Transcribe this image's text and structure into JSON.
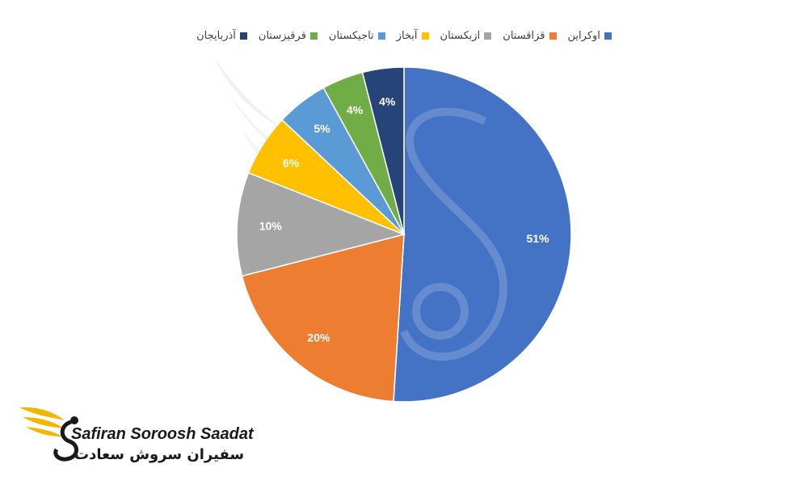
{
  "chart_data": {
    "type": "pie",
    "categories": [
      "اوکراین",
      "قزاقستان",
      "ازبکستان",
      "آبخاز",
      "تاجیکستان",
      "قرقیزستان",
      "آذربایجان"
    ],
    "values": [
      51,
      20,
      10,
      6,
      5,
      4,
      4
    ],
    "value_labels": [
      "51%",
      "20%",
      "10%",
      "6%",
      "5%",
      "4%",
      "4%"
    ],
    "colors": [
      "#4472C4",
      "#ED7D31",
      "#A5A5A5",
      "#FFC000",
      "#5B9BD5",
      "#70AD47",
      "#264478"
    ],
    "legend_position": "top",
    "title": ""
  },
  "logo": {
    "name_en": "Safiran Soroosh Saadat",
    "name_fa": "سفیران سروش سعادت"
  }
}
